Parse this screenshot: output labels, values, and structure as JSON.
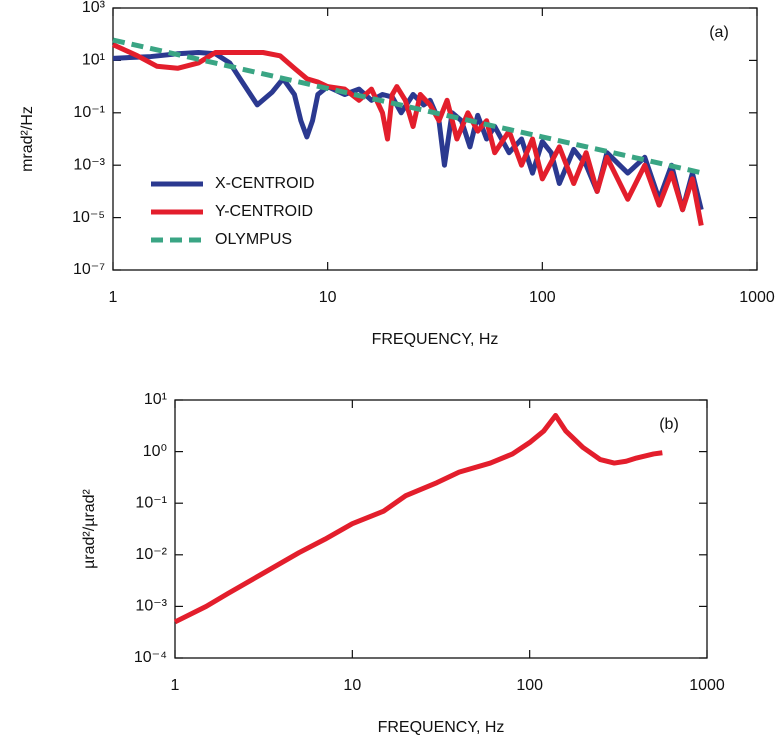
{
  "chart_data": [
    {
      "type": "line",
      "annotation": "(a)",
      "xlabel": "FREQUENCY, Hz",
      "ylabel": "mrad²/Hz",
      "xlog": true,
      "ylog": true,
      "legend": "lower left",
      "xlim": [
        1,
        1000
      ],
      "ylim": [
        1e-07,
        1000
      ],
      "xticks": [
        1,
        10,
        100,
        1000
      ],
      "yticks": [
        {
          "value": 1000,
          "label": "10³"
        },
        {
          "value": 10,
          "label": "10¹"
        },
        {
          "value": 0.1,
          "label": "10⁻¹"
        },
        {
          "value": 0.001,
          "label": "10⁻³"
        },
        {
          "value": 1e-05,
          "label": "10⁻⁵"
        },
        {
          "value": 1e-07,
          "label": "10⁻⁷"
        }
      ],
      "series": [
        {
          "name": "X-CENTROID",
          "color": "#2b3990",
          "dash": false,
          "x": [
            1,
            1.5,
            2,
            2.5,
            3,
            3.5,
            4,
            4.7,
            5.5,
            6.2,
            7,
            7.5,
            8,
            8.5,
            9,
            10,
            12,
            14,
            16,
            18,
            20,
            22,
            25,
            28,
            30,
            33,
            35,
            38,
            42,
            46,
            50,
            55,
            60,
            70,
            80,
            90,
            100,
            110,
            120,
            140,
            160,
            180,
            200,
            250,
            300,
            350,
            400,
            450,
            500,
            550
          ],
          "values": [
            12,
            14,
            18,
            20,
            18,
            8,
            1.5,
            0.2,
            0.6,
            2,
            0.5,
            0.05,
            0.012,
            0.05,
            0.5,
            1,
            0.5,
            0.8,
            0.3,
            0.5,
            0.4,
            0.1,
            0.5,
            0.2,
            0.3,
            0.05,
            0.001,
            0.1,
            0.05,
            0.005,
            0.08,
            0.01,
            0.03,
            0.003,
            0.01,
            0.0005,
            0.008,
            0.003,
            0.0002,
            0.004,
            0.001,
            0.0001,
            0.003,
            0.0005,
            0.002,
            5e-05,
            0.001,
            2e-05,
            0.0005,
            2e-05
          ]
        },
        {
          "name": "Y-CENTROID",
          "color": "#e31e2c",
          "dash": false,
          "x": [
            1,
            1.3,
            1.6,
            2,
            2.5,
            3,
            3.5,
            4,
            5,
            6,
            7,
            8,
            9,
            10,
            12,
            14,
            16,
            18,
            19,
            20,
            21,
            23,
            25,
            27,
            30,
            33,
            36,
            40,
            45,
            50,
            55,
            60,
            70,
            80,
            90,
            100,
            120,
            140,
            160,
            180,
            200,
            250,
            300,
            350,
            400,
            450,
            500,
            550
          ],
          "values": [
            40,
            15,
            6,
            5,
            8,
            20,
            20,
            20,
            20,
            15,
            5,
            2,
            1.5,
            1,
            0.8,
            0.3,
            0.8,
            0.1,
            0.01,
            0.5,
            1,
            0.3,
            0.03,
            0.5,
            0.2,
            0.05,
            0.3,
            0.01,
            0.1,
            0.02,
            0.05,
            0.003,
            0.02,
            0.001,
            0.01,
            0.0003,
            0.005,
            0.0002,
            0.003,
            0.0001,
            0.002,
            5e-05,
            0.001,
            3e-05,
            0.0005,
            2e-05,
            0.0003,
            5e-06
          ]
        },
        {
          "name": "OLYMPUS",
          "color": "#3aa584",
          "dash": true,
          "x": [
            1,
            3,
            10,
            30,
            100,
            300,
            560
          ],
          "values": [
            60,
            7.9,
            0.85,
            0.11,
            0.012,
            0.0016,
            0.0005
          ]
        }
      ]
    },
    {
      "type": "line",
      "annotation": "(b)",
      "xlabel": "FREQUENCY, Hz",
      "ylabel": "µrad²/µrad²",
      "xlog": true,
      "ylog": true,
      "xlim": [
        1,
        1000
      ],
      "ylim": [
        0.0001,
        10
      ],
      "xticks": [
        1,
        10,
        100,
        1000
      ],
      "yticks": [
        {
          "value": 10,
          "label": "10¹"
        },
        {
          "value": 1,
          "label": "10⁰"
        },
        {
          "value": 0.1,
          "label": "10⁻¹"
        },
        {
          "value": 0.01,
          "label": "10⁻²"
        },
        {
          "value": 0.001,
          "label": "10⁻³"
        },
        {
          "value": 0.0001,
          "label": "10⁻⁴"
        }
      ],
      "series": [
        {
          "color": "#e31e2c",
          "dash": false,
          "x": [
            1,
            1.5,
            2,
            3,
            5,
            7,
            10,
            15,
            20,
            30,
            40,
            60,
            80,
            100,
            120,
            140,
            160,
            200,
            250,
            300,
            350,
            400,
            500,
            560
          ],
          "values": [
            0.0005,
            0.001,
            0.0018,
            0.004,
            0.011,
            0.02,
            0.04,
            0.07,
            0.14,
            0.25,
            0.4,
            0.6,
            0.9,
            1.5,
            2.5,
            5,
            2.5,
            1.2,
            0.7,
            0.6,
            0.65,
            0.75,
            0.9,
            0.95
          ]
        }
      ]
    }
  ]
}
